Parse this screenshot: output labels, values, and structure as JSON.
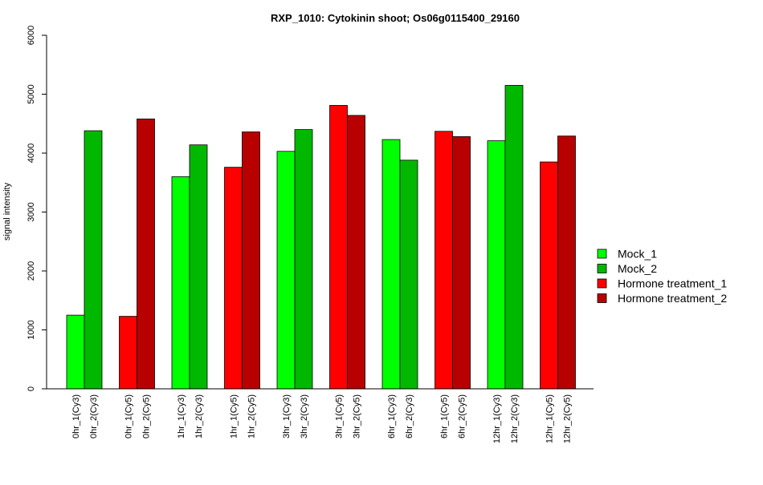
{
  "chart_data": {
    "type": "bar",
    "title": "RXP_1010: Cytokinin shoot; Os06g0115400_29160",
    "xlabel": "",
    "ylabel": "signal intensity",
    "ylim": [
      0,
      6000
    ],
    "yticks": [
      0,
      1000,
      2000,
      3000,
      4000,
      5000,
      6000
    ],
    "grid": false,
    "legend_position": "right",
    "categories": [
      "0hr_1(Cy3)",
      "0hr_2(Cy3)",
      "0hr_1(Cy5)",
      "0hr_2(Cy5)",
      "1hr_1(Cy3)",
      "1hr_2(Cy3)",
      "1hr_1(Cy5)",
      "1hr_2(Cy5)",
      "3hr_1(Cy3)",
      "3hr_2(Cy3)",
      "3hr_1(Cy5)",
      "3hr_2(Cy5)",
      "6hr_1(Cy3)",
      "6hr_2(Cy3)",
      "6hr_1(Cy5)",
      "6hr_2(Cy5)",
      "12hr_1(Cy3)",
      "12hr_2(Cy3)",
      "12hr_1(Cy5)",
      "12hr_2(Cy5)"
    ],
    "values": [
      1250,
      4380,
      1230,
      4580,
      3600,
      4140,
      3760,
      4360,
      4030,
      4400,
      4810,
      4640,
      4230,
      3880,
      4370,
      4280,
      4210,
      5150,
      3850,
      4290
    ],
    "bar_series": [
      "Mock_1",
      "Mock_2",
      "Hormone treatment_1",
      "Hormone treatment_2",
      "Mock_1",
      "Mock_2",
      "Hormone treatment_1",
      "Hormone treatment_2",
      "Mock_1",
      "Mock_2",
      "Hormone treatment_1",
      "Hormone treatment_2",
      "Mock_1",
      "Mock_2",
      "Hormone treatment_1",
      "Hormone treatment_2",
      "Mock_1",
      "Mock_2",
      "Hormone treatment_1",
      "Hormone treatment_2"
    ],
    "legend": [
      {
        "name": "Mock_1",
        "color": "#00ff00"
      },
      {
        "name": "Mock_2",
        "color": "#00b800"
      },
      {
        "name": "Hormone treatment_1",
        "color": "#ff0000"
      },
      {
        "name": "Hormone treatment_2",
        "color": "#b80000"
      }
    ]
  }
}
